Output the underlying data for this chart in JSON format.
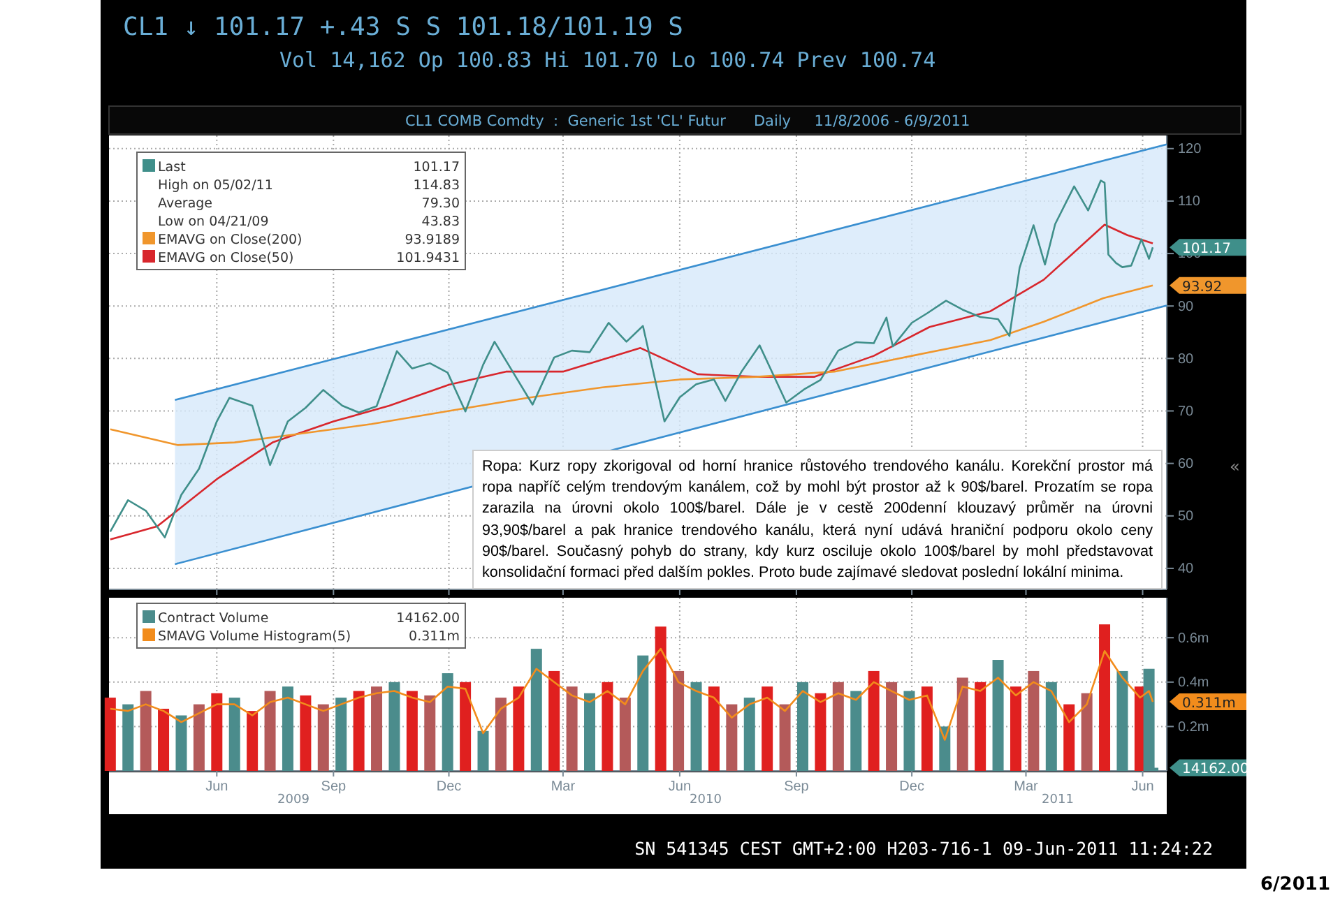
{
  "chart_data": [
    {
      "type": "line",
      "title": "CL1 ↓ 101.17 +.43 S S 101.18/101.19 S",
      "subtitle": "Vol 14,162 Op 100.83 Hi 101.70 Lo 100.74 Prev 100.74",
      "xlim": [
        "2009-03-08",
        "2011-06-20"
      ],
      "ylim": [
        36,
        122.5
      ],
      "xticks": [
        {
          "value": "2009-06-01",
          "label": null
        },
        {
          "value": "2009-09-01",
          "label": null
        },
        {
          "value": "2009-12-01",
          "label": null
        },
        {
          "value": "2010-03-01",
          "label": null
        },
        {
          "value": "2010-06-01",
          "label": null
        },
        {
          "value": "2010-09-01",
          "label": null
        },
        {
          "value": "2010-12-01",
          "label": null
        },
        {
          "value": "2011-03-01",
          "label": null
        },
        {
          "value": "2011-06-01",
          "label": null
        }
      ],
      "yticks": [
        40,
        50,
        60,
        70,
        80,
        90,
        100,
        110,
        120
      ],
      "tick_labels": "y",
      "grid": true,
      "legend": "top left",
      "annotations": [
        "CL1 COMB Comdty  :  Generic 1st 'CL' Futur      Daily     11/8/2006 - 6/9/2011",
        "Ropa: Kurz ropy zkorigoval od horní hranice růstového trendového kanálu. Korekční prostor má ropa napříč celým trendovým kanálem, což by mohl být prostor až k 90$/barel. Prozatím se ropa zarazila na úrovni okolo 100$/barel. Dále je v cestě 200denní klouzavý průměr na úrovni 93,90$/barel a pak hranice trendového kanálu, která nyní udává hraniční podporu okolo ceny 90$/barel. Současný pohyb do strany, kdy kurz osciluje okolo 100$/barel by mohl představovat konsolidační formaci před dalším pokles. Proto bude zajímavé sledovat poslední lokální minima.",
        "«",
        "High on 05/02/11",
        "Average",
        "Low on 04/21/09",
        "101.17",
        "114.83",
        "79.30",
        "43.83",
        "93.9189",
        "101.9431",
        "101.17",
        "93.92"
      ],
      "series": [
        {
          "name": "Last",
          "color": "#3f8f8a",
          "x": [
            "2009-03-09",
            "2009-03-23",
            "2009-04-06",
            "2009-04-21",
            "2009-05-04",
            "2009-05-18",
            "2009-06-01",
            "2009-06-11",
            "2009-06-29",
            "2009-07-13",
            "2009-07-27",
            "2009-08-10",
            "2009-08-24",
            "2009-09-08",
            "2009-09-21",
            "2009-10-05",
            "2009-10-21",
            "2009-11-02",
            "2009-11-16",
            "2009-11-30",
            "2009-12-14",
            "2009-12-28",
            "2010-01-06",
            "2010-01-20",
            "2010-02-05",
            "2010-02-22",
            "2010-03-08",
            "2010-03-22",
            "2010-04-06",
            "2010-04-20",
            "2010-05-03",
            "2010-05-20",
            "2010-06-01",
            "2010-06-14",
            "2010-06-28",
            "2010-07-07",
            "2010-07-20",
            "2010-08-03",
            "2010-08-24",
            "2010-09-07",
            "2010-09-20",
            "2010-10-04",
            "2010-10-18",
            "2010-11-01",
            "2010-11-11",
            "2010-11-16",
            "2010-12-01",
            "2010-12-13",
            "2010-12-28",
            "2011-01-10",
            "2011-01-24",
            "2011-02-07",
            "2011-02-16",
            "2011-02-24",
            "2011-03-07",
            "2011-03-16",
            "2011-03-24",
            "2011-04-08",
            "2011-04-19",
            "2011-04-29",
            "2011-05-02",
            "2011-05-05",
            "2011-05-11",
            "2011-05-16",
            "2011-05-23",
            "2011-05-31",
            "2011-06-06",
            "2011-06-09"
          ],
          "values": [
            47,
            53,
            51,
            45.9,
            54,
            59,
            68,
            72.5,
            71,
            59.7,
            68,
            70.6,
            74,
            71,
            69.7,
            70.9,
            81.4,
            78.1,
            79.1,
            77.3,
            69.9,
            78.8,
            83.2,
            77.6,
            71.2,
            80.2,
            81.5,
            81.2,
            86.8,
            83.2,
            86.2,
            68,
            72.6,
            75.1,
            76,
            71.9,
            77.6,
            82.5,
            71.6,
            74.1,
            75.9,
            81.5,
            83.1,
            82.9,
            87.8,
            82.3,
            86.8,
            88.6,
            91,
            89.3,
            87.9,
            87.5,
            84.3,
            97.3,
            105.4,
            97.9,
            105.6,
            112.8,
            108.2,
            113.9,
            113.5,
            99.8,
            98.2,
            97.4,
            97.7,
            102.7,
            99,
            101.17
          ]
        },
        {
          "name": "EMAVG on Close(200)",
          "color": "#f0962c",
          "x": [
            "2009-03-09",
            "2009-05-01",
            "2009-06-15",
            "2009-08-01",
            "2009-10-01",
            "2009-12-01",
            "2010-02-01",
            "2010-04-01",
            "2010-06-01",
            "2010-08-01",
            "2010-10-01",
            "2010-12-01",
            "2011-02-01",
            "2011-03-15",
            "2011-05-01",
            "2011-06-09"
          ],
          "values": [
            66.5,
            63.5,
            64,
            65.5,
            67.5,
            70,
            72.5,
            74.5,
            76,
            76.5,
            77.5,
            80.5,
            83.5,
            87,
            91.5,
            93.9189
          ]
        },
        {
          "name": "EMAVG on Close(50)",
          "color": "#d8262c",
          "x": [
            "2009-03-09",
            "2009-04-15",
            "2009-06-01",
            "2009-07-15",
            "2009-09-01",
            "2009-10-15",
            "2009-12-01",
            "2010-01-15",
            "2010-03-01",
            "2010-05-01",
            "2010-06-15",
            "2010-08-01",
            "2010-09-15",
            "2010-11-01",
            "2010-12-15",
            "2011-02-01",
            "2011-03-15",
            "2011-05-02",
            "2011-05-20",
            "2011-06-09"
          ],
          "values": [
            45.5,
            48,
            57,
            64,
            68,
            71,
            75,
            77.5,
            77.5,
            82,
            77,
            76.5,
            76.5,
            80.5,
            86,
            89,
            95,
            105.5,
            103.5,
            101.9431
          ]
        },
        {
          "color": "#3a8fd0",
          "x": [
            "2009-04-29",
            "2011-06-20"
          ],
          "values": [
            72.1,
            120.8
          ]
        },
        {
          "color": "#3a8fd0",
          "x": [
            "2009-04-29",
            "2011-06-20"
          ],
          "values": [
            40.8,
            90.1
          ]
        }
      ]
    },
    {
      "type": "bar",
      "xlim": [
        "2009-03-08",
        "2011-06-20"
      ],
      "ylim": [
        0,
        0.78
      ],
      "xticks": [
        {
          "value": "2009-06-01",
          "label": "Jun"
        },
        {
          "value": "2009-09-01",
          "label": "Sep"
        },
        {
          "value": "2009-12-01",
          "label": "Dec"
        },
        {
          "value": "2010-03-01",
          "label": "Mar"
        },
        {
          "value": "2010-06-01",
          "label": "Jun"
        },
        {
          "value": "2010-09-01",
          "label": "Sep"
        },
        {
          "value": "2010-12-01",
          "label": "Dec"
        },
        {
          "value": "2011-03-01",
          "label": "Mar"
        },
        {
          "value": "2011-06-01",
          "label": "Jun"
        }
      ],
      "yticks": [
        {
          "value": 0.2,
          "label": "0.2m"
        },
        {
          "value": 0.4,
          "label": "0.4m"
        },
        {
          "value": 0.6,
          "label": "0.6m"
        }
      ],
      "grid": true,
      "legend": "top left",
      "x": [
        "2009-03-09",
        "2009-03-23",
        "2009-04-06",
        "2009-04-20",
        "2009-05-04",
        "2009-05-18",
        "2009-06-01",
        "2009-06-15",
        "2009-06-29",
        "2009-07-13",
        "2009-07-27",
        "2009-08-10",
        "2009-08-24",
        "2009-09-07",
        "2009-09-21",
        "2009-10-05",
        "2009-10-19",
        "2009-11-02",
        "2009-11-16",
        "2009-11-30",
        "2009-12-14",
        "2009-12-28",
        "2010-01-11",
        "2010-01-25",
        "2010-02-08",
        "2010-02-22",
        "2010-03-08",
        "2010-03-22",
        "2010-04-05",
        "2010-04-19",
        "2010-05-03",
        "2010-05-17",
        "2010-05-31",
        "2010-06-14",
        "2010-06-28",
        "2010-07-12",
        "2010-07-26",
        "2010-08-09",
        "2010-08-23",
        "2010-09-06",
        "2010-09-20",
        "2010-10-04",
        "2010-10-18",
        "2010-11-01",
        "2010-11-15",
        "2010-11-29",
        "2010-12-13",
        "2010-12-27",
        "2011-01-10",
        "2011-01-24",
        "2011-02-07",
        "2011-02-21",
        "2011-03-07",
        "2011-03-21",
        "2011-04-04",
        "2011-04-18",
        "2011-05-02",
        "2011-05-16",
        "2011-05-30",
        "2011-06-06",
        "2011-06-09"
      ],
      "annotations": [
        "2009",
        "2010",
        "2011",
        "14162.00",
        "0.311m",
        "0.311m",
        "14162.00",
        "SN 541345 CEST GMT+2:00 H203-716-1 09-Jun-2011 11:24:22",
        "6/2011"
      ],
      "series": [
        {
          "name": "Contract Volume",
          "color": "#4b8c8c",
          "colors": [
            "#e0201f",
            "#4b8c8c",
            "#b45a5a",
            "#e0201f",
            "#4b8c8c",
            "#b45a5a",
            "#e0201f",
            "#4b8c8c",
            "#e0201f",
            "#b45a5a",
            "#4b8c8c",
            "#e0201f",
            "#b45a5a",
            "#4b8c8c",
            "#e0201f",
            "#b45a5a",
            "#4b8c8c",
            "#e0201f",
            "#b45a5a",
            "#4b8c8c",
            "#e0201f",
            "#4b8c8c",
            "#b45a5a",
            "#e0201f",
            "#4b8c8c",
            "#e0201f",
            "#b45a5a",
            "#4b8c8c",
            "#e0201f",
            "#b45a5a",
            "#4b8c8c",
            "#e0201f",
            "#b45a5a",
            "#4b8c8c",
            "#e0201f",
            "#b45a5a",
            "#4b8c8c",
            "#e0201f",
            "#b45a5a",
            "#4b8c8c",
            "#e0201f",
            "#b45a5a",
            "#4b8c8c",
            "#e0201f",
            "#b45a5a",
            "#4b8c8c",
            "#e0201f",
            "#4b8c8c",
            "#b45a5a",
            "#e0201f",
            "#4b8c8c",
            "#e0201f",
            "#b45a5a",
            "#4b8c8c",
            "#e0201f",
            "#b45a5a",
            "#e0201f",
            "#4b8c8c",
            "#e0201f",
            "#4b8c8c",
            "#4b8c8c"
          ],
          "values": [
            0.33,
            0.3,
            0.36,
            0.28,
            0.25,
            0.3,
            0.35,
            0.33,
            0.27,
            0.36,
            0.38,
            0.34,
            0.3,
            0.33,
            0.36,
            0.38,
            0.4,
            0.36,
            0.34,
            0.44,
            0.4,
            0.18,
            0.33,
            0.38,
            0.55,
            0.45,
            0.38,
            0.35,
            0.4,
            0.33,
            0.52,
            0.65,
            0.45,
            0.4,
            0.38,
            0.3,
            0.33,
            0.38,
            0.3,
            0.4,
            0.35,
            0.4,
            0.36,
            0.45,
            0.4,
            0.36,
            0.38,
            0.2,
            0.42,
            0.4,
            0.5,
            0.38,
            0.45,
            0.4,
            0.3,
            0.35,
            0.66,
            0.45,
            0.38,
            0.46,
            0.014162
          ]
        },
        {
          "type": "line",
          "name": "SMAVG Volume Histogram(5)",
          "color": "#f28c1c",
          "values": [
            0.28,
            0.27,
            0.3,
            0.27,
            0.22,
            0.26,
            0.3,
            0.3,
            0.25,
            0.31,
            0.33,
            0.3,
            0.27,
            0.3,
            0.33,
            0.35,
            0.36,
            0.33,
            0.31,
            0.38,
            0.37,
            0.17,
            0.28,
            0.33,
            0.46,
            0.4,
            0.34,
            0.31,
            0.36,
            0.3,
            0.45,
            0.55,
            0.4,
            0.36,
            0.33,
            0.24,
            0.3,
            0.33,
            0.27,
            0.36,
            0.31,
            0.35,
            0.32,
            0.4,
            0.36,
            0.32,
            0.34,
            0.14,
            0.38,
            0.36,
            0.42,
            0.34,
            0.4,
            0.36,
            0.22,
            0.3,
            0.54,
            0.42,
            0.33,
            0.36,
            0.311
          ]
        }
      ]
    }
  ]
}
